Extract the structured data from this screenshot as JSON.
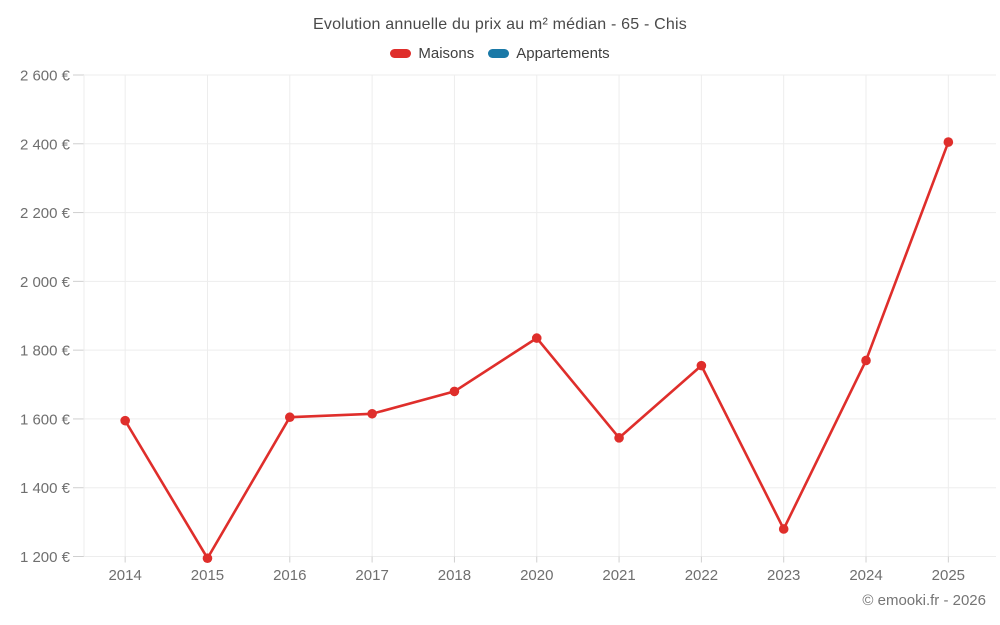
{
  "header": {
    "title": "Evolution annuelle du prix au m² médian - 65 - Chis"
  },
  "footer": {
    "copyright": "© emooki.fr - 2026"
  },
  "colors": {
    "maisons": "#df2e2b",
    "appartements": "#1a79a7",
    "gridline": "#ededed",
    "tick": "#cfcfcf",
    "axis_label": "#6f6f6f",
    "title_text": "#4a4a4a",
    "background": "#ffffff"
  },
  "chart_data": {
    "type": "line",
    "title": "Evolution annuelle du prix au m² médian - 65 - Chis",
    "xlabel": "",
    "ylabel": "",
    "grid": true,
    "legend_position": "top",
    "categories": [
      "2014",
      "2015",
      "2016",
      "2017",
      "2018",
      "2020",
      "2021",
      "2022",
      "2023",
      "2024",
      "2025"
    ],
    "series": [
      {
        "name": "Maisons",
        "color": "#df2e2b",
        "values": [
          1595,
          1195,
          1605,
          1615,
          1680,
          1835,
          1545,
          1755,
          1280,
          1770,
          2405
        ]
      },
      {
        "name": "Appartements",
        "color": "#1a79a7",
        "values": []
      }
    ],
    "ylim": [
      1200,
      2600
    ],
    "y_ticks": [
      1200,
      1400,
      1600,
      1800,
      2000,
      2200,
      2400,
      2600
    ],
    "y_tick_labels": [
      "1 200 €",
      "1 400 €",
      "1 600 €",
      "1 800 €",
      "2 000 €",
      "2 200 €",
      "2 400 €",
      "2 600 €"
    ],
    "currency_suffix": "€"
  }
}
